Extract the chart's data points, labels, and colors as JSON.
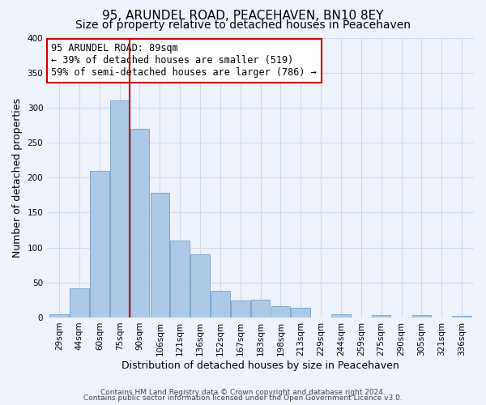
{
  "title": "95, ARUNDEL ROAD, PEACEHAVEN, BN10 8EY",
  "subtitle": "Size of property relative to detached houses in Peacehaven",
  "xlabel": "Distribution of detached houses by size in Peacehaven",
  "ylabel": "Number of detached properties",
  "bar_labels": [
    "29sqm",
    "44sqm",
    "60sqm",
    "75sqm",
    "90sqm",
    "106sqm",
    "121sqm",
    "136sqm",
    "152sqm",
    "167sqm",
    "183sqm",
    "198sqm",
    "213sqm",
    "229sqm",
    "244sqm",
    "259sqm",
    "275sqm",
    "290sqm",
    "305sqm",
    "321sqm",
    "336sqm"
  ],
  "bar_values": [
    5,
    42,
    210,
    310,
    270,
    178,
    110,
    90,
    38,
    24,
    26,
    16,
    14,
    0,
    5,
    0,
    4,
    0,
    3,
    0,
    2
  ],
  "bar_color": "#adc9e8",
  "bar_edge_color": "#6fa0c8",
  "vline_color": "#cc0000",
  "annotation_line1": "95 ARUNDEL ROAD: 89sqm",
  "annotation_line2": "← 39% of detached houses are smaller (519)",
  "annotation_line3": "59% of semi-detached houses are larger (786) →",
  "annotation_box_color": "#ffffff",
  "annotation_box_edge": "#cc0000",
  "ylim": [
    0,
    400
  ],
  "yticks": [
    0,
    50,
    100,
    150,
    200,
    250,
    300,
    350,
    400
  ],
  "footer1": "Contains HM Land Registry data © Crown copyright and database right 2024.",
  "footer2": "Contains public sector information licensed under the Open Government Licence v3.0.",
  "title_fontsize": 11,
  "subtitle_fontsize": 10,
  "axis_label_fontsize": 9,
  "tick_fontsize": 7.5,
  "annotation_fontsize": 8.5,
  "footer_fontsize": 6.5,
  "grid_color": "#d0d8ec",
  "background_color": "#eef2fa"
}
